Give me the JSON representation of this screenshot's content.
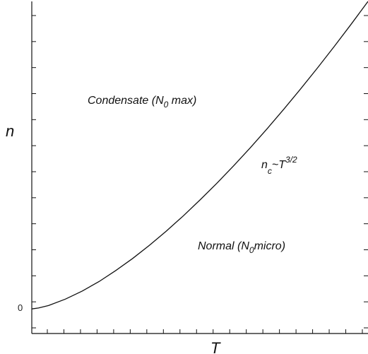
{
  "chart_data": {
    "type": "line",
    "title": "",
    "xlabel": "T",
    "ylabel": "n",
    "y_tick_labels": [
      {
        "value": 0,
        "label": "0"
      }
    ],
    "xlim": [
      0,
      1
    ],
    "ylim": [
      -0.08,
      1.0
    ],
    "grid": false,
    "series": [
      {
        "formula": "n_c ~ T^(3/2)",
        "x": [
          0,
          0.02,
          0.05,
          0.1,
          0.15,
          0.2,
          0.25,
          0.3,
          0.35,
          0.4,
          0.45,
          0.5,
          0.55,
          0.6,
          0.65,
          0.7,
          0.75,
          0.8,
          0.85,
          0.9,
          0.95,
          1.0
        ],
        "y": [
          0,
          0.003,
          0.011,
          0.032,
          0.058,
          0.089,
          0.125,
          0.164,
          0.207,
          0.253,
          0.302,
          0.354,
          0.408,
          0.465,
          0.524,
          0.586,
          0.65,
          0.716,
          0.784,
          0.854,
          0.926,
          1.0
        ]
      }
    ],
    "annotations": {
      "condensate": {
        "prefix": "Condensate (N",
        "sub": "0",
        "suffix": " max)"
      },
      "normal": {
        "prefix": "Normal (N",
        "sub": "0",
        "suffix": "micro)"
      },
      "curve_label": {
        "n": "n",
        "n_sub": "c",
        "mid": "~T",
        "sup": "3/2"
      }
    }
  }
}
